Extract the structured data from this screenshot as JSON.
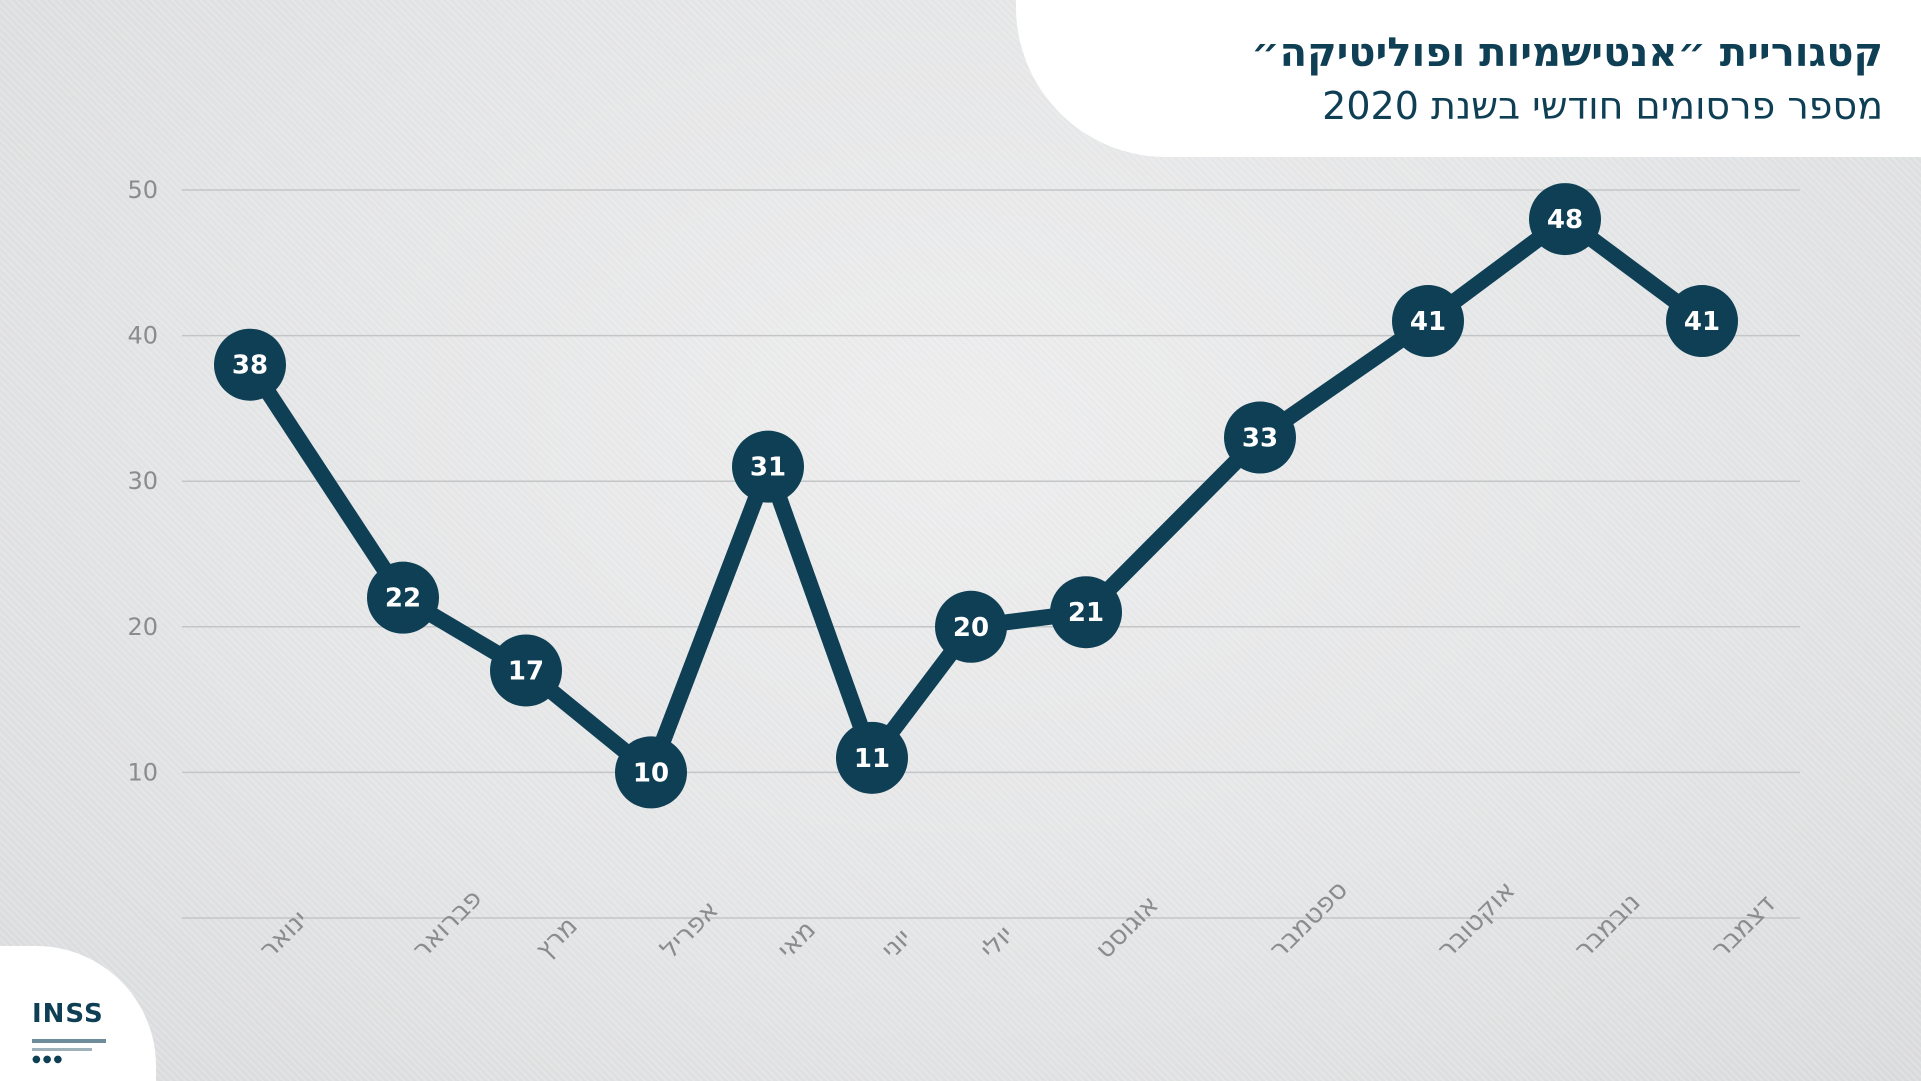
{
  "header": {
    "title": "קטגוריית ״אנטישמיות ופוליטיקה״",
    "subtitle": "מספר פרסומים חודשי בשנת 2020"
  },
  "logo": {
    "text": "INSS"
  },
  "colors": {
    "line": "#0e3f55",
    "point_label": "#ffffff",
    "grid": "#c4c5c7",
    "axis_text": "#8a8c8e"
  },
  "chart_data": {
    "type": "line",
    "title": "קטגוריית ״אנטישמיות ופוליטיקה״",
    "subtitle": "מספר פרסומים חודשי בשנת 2020",
    "categories": [
      "ינואר",
      "פברואר",
      "מרץ",
      "אפריל",
      "מאי",
      "יוני",
      "יולי",
      "אוגוסט",
      "ספטמבר",
      "אוקטובר",
      "נובמבר",
      "דצמבר"
    ],
    "series": [
      {
        "values": [
          38,
          22,
          17,
          10,
          31,
          11,
          20,
          21,
          33,
          41,
          48,
          41
        ]
      }
    ],
    "y_ticks": [
      10,
      20,
      30,
      40,
      50
    ],
    "ylim": [
      0,
      50
    ],
    "grid": true,
    "data_labels": true
  }
}
